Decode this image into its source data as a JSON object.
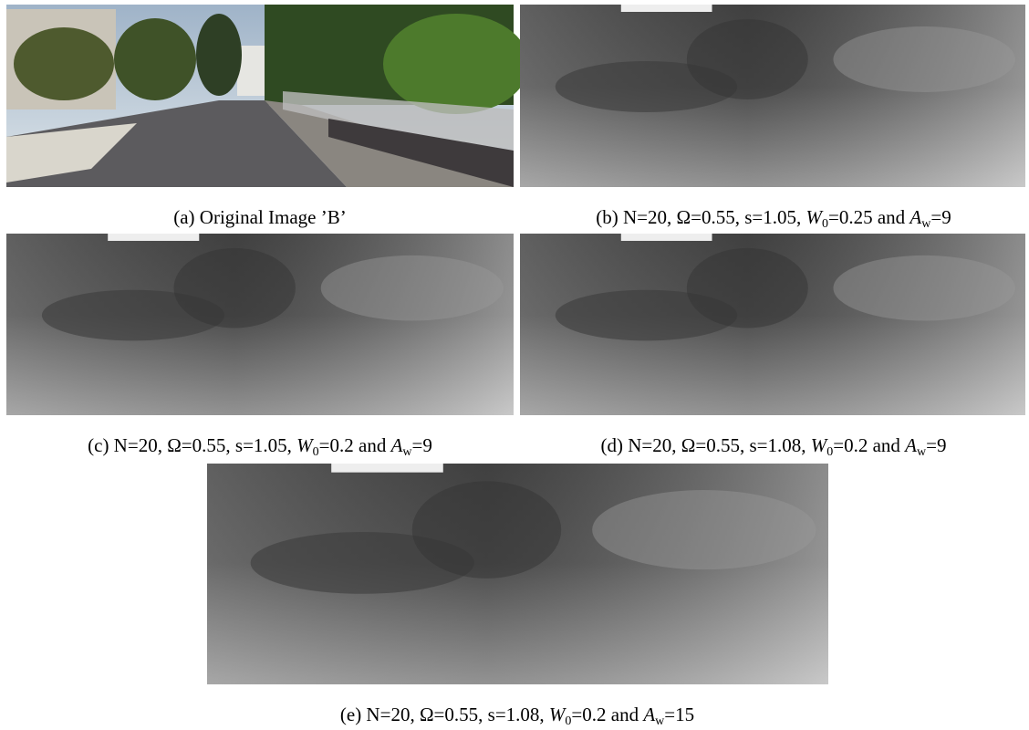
{
  "figure": {
    "panels": [
      {
        "caption": [
          {
            "text": "(a) Original Image ’B’"
          }
        ]
      },
      {
        "caption": [
          {
            "text": "(b) N=20, Ω=0.55, s=1.05, "
          },
          {
            "var": "W",
            "sub": "0"
          },
          {
            "text": "=0.25 and "
          },
          {
            "var": "A",
            "sub": "w"
          },
          {
            "text": "=9"
          }
        ]
      },
      {
        "caption": [
          {
            "text": "(c) N=20, Ω=0.55, s=1.05, "
          },
          {
            "var": "W",
            "sub": "0"
          },
          {
            "text": "=0.2 and "
          },
          {
            "var": "A",
            "sub": "w"
          },
          {
            "text": "=9"
          }
        ]
      },
      {
        "caption": [
          {
            "text": "(d) N=20, Ω=0.55, s=1.08, "
          },
          {
            "var": "W",
            "sub": "0"
          },
          {
            "text": "=0.2 and "
          },
          {
            "var": "A",
            "sub": "w"
          },
          {
            "text": "=9"
          }
        ]
      },
      {
        "caption": [
          {
            "text": "(e) N=20, Ω=0.55, s=1.08, "
          },
          {
            "var": "W",
            "sub": "0"
          },
          {
            "text": "=0.2 and "
          },
          {
            "var": "A",
            "sub": "w"
          },
          {
            "text": "=15"
          }
        ]
      }
    ]
  }
}
